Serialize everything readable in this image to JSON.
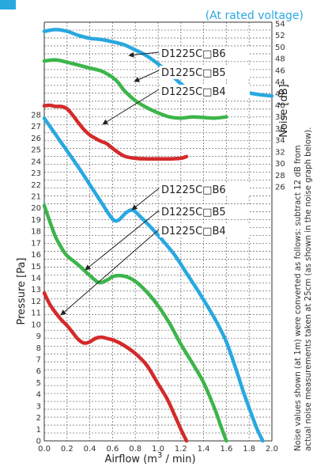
{
  "chart_data": {
    "type": "line",
    "condition": "(At rated voltage)",
    "xlabel": "Airflow (m",
    "xlabel_sup": "3",
    "xlabel_end": " / min)",
    "ylabel_left": "Pressure [Pa]",
    "ylabel_right": "Noise [dB]",
    "note_lines": [
      "Noise values shown (at 1m) were converted as follows: subtract 12 dB from",
      "actual noise measurements taken at 25cm (as shown in the noise graph below)."
    ],
    "xlim": [
      0,
      2.0
    ],
    "ylim_pressure": [
      0,
      28
    ],
    "ylim_noise": [
      26,
      54
    ],
    "x_ticks": [
      "0.0",
      "0.2",
      "0.4",
      "0.6",
      "0.8",
      "1.0",
      "1.2",
      "1.4",
      "1.6",
      "1.8",
      "2.0"
    ],
    "pressure_ticks": [
      "0",
      "1",
      "2",
      "3",
      "4",
      "5",
      "6",
      "7",
      "8",
      "9",
      "10",
      "11",
      "12",
      "13",
      "14",
      "15",
      "16",
      "17",
      "18",
      "19",
      "20",
      "21",
      "22",
      "23",
      "24",
      "25",
      "26",
      "27",
      "28"
    ],
    "noise_ticks": [
      "26",
      "28",
      "30",
      "32",
      "34",
      "36",
      "38",
      "40",
      "42",
      "44",
      "46",
      "48",
      "50",
      "52",
      "54"
    ],
    "colors": {
      "B6": "#29a8e0",
      "B5": "#3cb54a",
      "B4": "#d42a2a",
      "grid": "#777777"
    },
    "series": [
      {
        "name": "D1225C□B6",
        "kind": "pressure",
        "color_key": "B6",
        "x": [
          0.0,
          0.1,
          0.2,
          0.3,
          0.4,
          0.5,
          0.58,
          0.62,
          0.66,
          0.72,
          0.78,
          0.85,
          0.95,
          1.05,
          1.15,
          1.25,
          1.35,
          1.45,
          1.52,
          1.6,
          1.68,
          1.75,
          1.82,
          1.87,
          1.92
        ],
        "y": [
          27.7,
          26.3,
          24.9,
          23.5,
          22.0,
          20.5,
          19.3,
          18.9,
          19.0,
          19.6,
          19.8,
          19.2,
          18.2,
          17.1,
          15.9,
          14.4,
          12.9,
          11.3,
          10.1,
          8.5,
          6.3,
          4.2,
          2.3,
          1.0,
          0
        ]
      },
      {
        "name": "D1225C□B5",
        "kind": "pressure",
        "color_key": "B5",
        "x": [
          0.0,
          0.05,
          0.1,
          0.15,
          0.2,
          0.3,
          0.4,
          0.48,
          0.55,
          0.6,
          0.65,
          0.72,
          0.8,
          0.9,
          1.0,
          1.1,
          1.2,
          1.3,
          1.4,
          1.5,
          1.55,
          1.6
        ],
        "y": [
          20.2,
          18.8,
          17.5,
          16.6,
          15.9,
          15.1,
          14.2,
          13.6,
          13.8,
          14.1,
          14.2,
          14.1,
          13.7,
          12.8,
          11.6,
          10.1,
          8.3,
          6.7,
          5.0,
          2.7,
          1.3,
          0
        ]
      },
      {
        "name": "D1225C□B4",
        "kind": "pressure",
        "color_key": "B4",
        "x": [
          0.0,
          0.05,
          0.1,
          0.15,
          0.2,
          0.25,
          0.3,
          0.35,
          0.4,
          0.45,
          0.5,
          0.55,
          0.62,
          0.7,
          0.8,
          0.9,
          1.0,
          1.08,
          1.15,
          1.2,
          1.25
        ],
        "y": [
          12.7,
          11.7,
          11.0,
          10.4,
          9.9,
          9.3,
          8.7,
          8.4,
          8.5,
          8.8,
          8.9,
          8.8,
          8.6,
          8.2,
          7.5,
          6.5,
          4.9,
          3.6,
          2.1,
          1.0,
          0
        ]
      },
      {
        "name": "D1225C□B6",
        "kind": "noise",
        "color_key": "B6",
        "x": [
          0.0,
          0.1,
          0.2,
          0.3,
          0.4,
          0.5,
          0.6,
          0.7,
          0.8,
          0.9,
          1.0,
          1.1,
          1.2,
          1.3,
          1.4,
          1.5,
          1.6,
          1.7,
          1.8,
          1.9,
          2.0
        ],
        "y": [
          52.7,
          53.0,
          52.7,
          52.0,
          51.5,
          51.3,
          50.9,
          50.4,
          49.5,
          48.5,
          47.1,
          45.5,
          43.7,
          42.3,
          41.7,
          41.6,
          41.9,
          42.4,
          42.1,
          41.8,
          41.6
        ]
      },
      {
        "name": "D1225C□B5",
        "kind": "noise",
        "color_key": "B5",
        "x": [
          0.0,
          0.1,
          0.2,
          0.3,
          0.4,
          0.5,
          0.55,
          0.6,
          0.65,
          0.7,
          0.8,
          0.9,
          1.0,
          1.1,
          1.2,
          1.3,
          1.4,
          1.5,
          1.6
        ],
        "y": [
          47.6,
          47.8,
          47.4,
          46.9,
          46.4,
          45.9,
          45.4,
          44.8,
          43.9,
          42.6,
          40.8,
          39.6,
          38.7,
          38.0,
          37.8,
          38.0,
          37.9,
          37.8,
          38.0
        ]
      },
      {
        "name": "D1225C□B4",
        "kind": "noise",
        "color_key": "B4",
        "x": [
          0.0,
          0.05,
          0.1,
          0.15,
          0.2,
          0.25,
          0.3,
          0.35,
          0.4,
          0.45,
          0.5,
          0.55,
          0.6,
          0.7,
          0.8,
          0.9,
          1.0,
          1.1,
          1.2,
          1.25
        ],
        "y": [
          39.9,
          40.0,
          39.8,
          39.8,
          39.4,
          38.3,
          37.0,
          35.8,
          34.9,
          34.3,
          33.8,
          33.4,
          32.6,
          31.3,
          30.9,
          30.8,
          30.8,
          30.8,
          30.9,
          31.2
        ]
      }
    ]
  }
}
